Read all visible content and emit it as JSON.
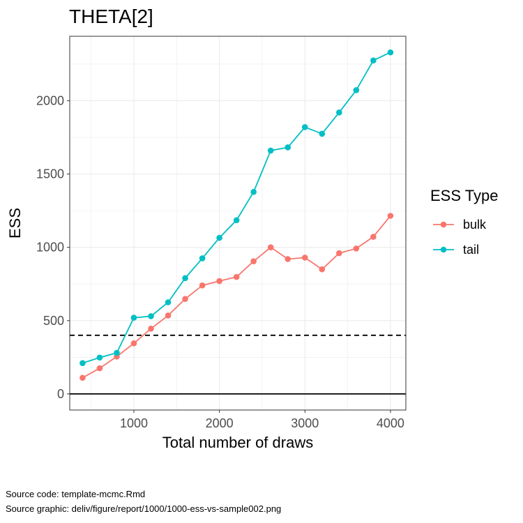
{
  "chart_data": {
    "type": "line",
    "title": "THETA[2]",
    "xlabel": "Total number of draws",
    "ylabel": "ESS",
    "x": [
      400,
      600,
      800,
      1000,
      1200,
      1400,
      1600,
      1800,
      2000,
      2200,
      2400,
      2600,
      2800,
      3000,
      3200,
      3400,
      3600,
      3800,
      4000
    ],
    "series": [
      {
        "name": "bulk",
        "color": "#F8766D",
        "values": [
          110,
          175,
          255,
          345,
          445,
          535,
          648,
          740,
          770,
          798,
          905,
          1000,
          920,
          930,
          850,
          960,
          992,
          1072,
          1215
        ]
      },
      {
        "name": "tail",
        "color": "#00BFC4",
        "values": [
          210,
          248,
          280,
          520,
          530,
          625,
          790,
          925,
          1065,
          1185,
          1378,
          1660,
          1682,
          1820,
          1775,
          1920,
          2072,
          2275,
          2330
        ]
      }
    ],
    "xlim": [
      250,
      4180
    ],
    "ylim": [
      -110,
      2440
    ],
    "xticks": [
      1000,
      2000,
      3000,
      4000
    ],
    "yticks": [
      0,
      500,
      1000,
      1500,
      2000
    ],
    "xtick_labels": [
      "1000",
      "2000",
      "3000",
      "4000"
    ],
    "ytick_labels": [
      "0",
      "500",
      "1000",
      "1500",
      "2000"
    ],
    "reference_lines": [
      {
        "y": 400,
        "style": "dashed",
        "color": "#000000"
      },
      {
        "y": 0,
        "style": "solid",
        "color": "#000000"
      }
    ],
    "grid": true,
    "legend": {
      "title": "ESS Type",
      "placement": "right"
    }
  },
  "captions": {
    "source_code": "Source code: template-mcmc.Rmd",
    "source_graphic": "Source graphic: deliv/figure/report/1000/1000-ess-vs-sample002.png"
  }
}
